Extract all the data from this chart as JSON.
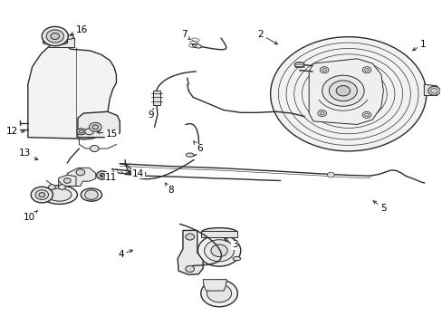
{
  "background_color": "#ffffff",
  "line_color": "#2a2a2a",
  "label_color": "#000000",
  "fig_width": 4.89,
  "fig_height": 3.6,
  "dpi": 100,
  "label_positions": {
    "1": [
      0.96,
      0.87,
      0.93,
      0.845
    ],
    "2": [
      0.59,
      0.9,
      0.635,
      0.865
    ],
    "3": [
      0.53,
      0.245,
      0.5,
      0.27
    ],
    "4": [
      0.27,
      0.215,
      0.305,
      0.232
    ],
    "5": [
      0.87,
      0.36,
      0.84,
      0.388
    ],
    "6": [
      0.45,
      0.545,
      0.435,
      0.57
    ],
    "7": [
      0.415,
      0.9,
      0.435,
      0.878
    ],
    "8": [
      0.385,
      0.415,
      0.37,
      0.44
    ],
    "9": [
      0.34,
      0.65,
      0.345,
      0.672
    ],
    "10": [
      0.062,
      0.33,
      0.085,
      0.358
    ],
    "11": [
      0.248,
      0.455,
      0.222,
      0.462
    ],
    "12": [
      0.022,
      0.6,
      0.058,
      0.598
    ],
    "13": [
      0.052,
      0.53,
      0.088,
      0.505
    ],
    "14": [
      0.31,
      0.467,
      0.278,
      0.472
    ],
    "15": [
      0.25,
      0.59,
      0.208,
      0.598
    ],
    "16": [
      0.182,
      0.915,
      0.148,
      0.895
    ]
  }
}
